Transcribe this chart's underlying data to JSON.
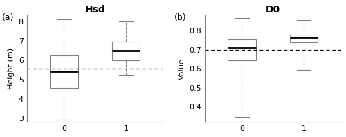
{
  "panel_a": {
    "title": "Hsd",
    "ylabel": "Height (m)",
    "xlabel": "",
    "ylim": [
      2.8,
      8.3
    ],
    "yticks": [
      3,
      4,
      5,
      6,
      7,
      8
    ],
    "xticks": [
      0,
      1
    ],
    "mean_line": 5.55,
    "boxes": [
      {
        "label": 0,
        "whislo": 2.9,
        "q1": 4.55,
        "med": 5.4,
        "q3": 6.25,
        "whishi": 8.1,
        "fliers": []
      },
      {
        "label": 1,
        "whislo": 5.2,
        "q1": 6.0,
        "med": 6.5,
        "q3": 6.95,
        "whishi": 8.0,
        "fliers": []
      }
    ]
  },
  "panel_b": {
    "title": "D0",
    "ylabel": "Value",
    "xlabel": "",
    "ylim": [
      0.32,
      0.88
    ],
    "yticks": [
      0.4,
      0.5,
      0.6,
      0.7,
      0.8
    ],
    "xticks": [
      0,
      1
    ],
    "mean_line": 0.7,
    "boxes": [
      {
        "label": 0,
        "whislo": 0.345,
        "q1": 0.645,
        "med": 0.71,
        "q3": 0.755,
        "whishi": 0.865,
        "fliers": []
      },
      {
        "label": 1,
        "whislo": 0.595,
        "q1": 0.74,
        "med": 0.765,
        "q3": 0.78,
        "whishi": 0.855,
        "fliers": []
      }
    ]
  },
  "label_a": "(a)",
  "label_b": "(b)",
  "box_color": "white",
  "median_color": "black",
  "whisker_color": "gray",
  "cap_color": "gray",
  "box_edge_color": "gray",
  "mean_line_color": "black",
  "mean_line_style": "--",
  "background_color": "white"
}
